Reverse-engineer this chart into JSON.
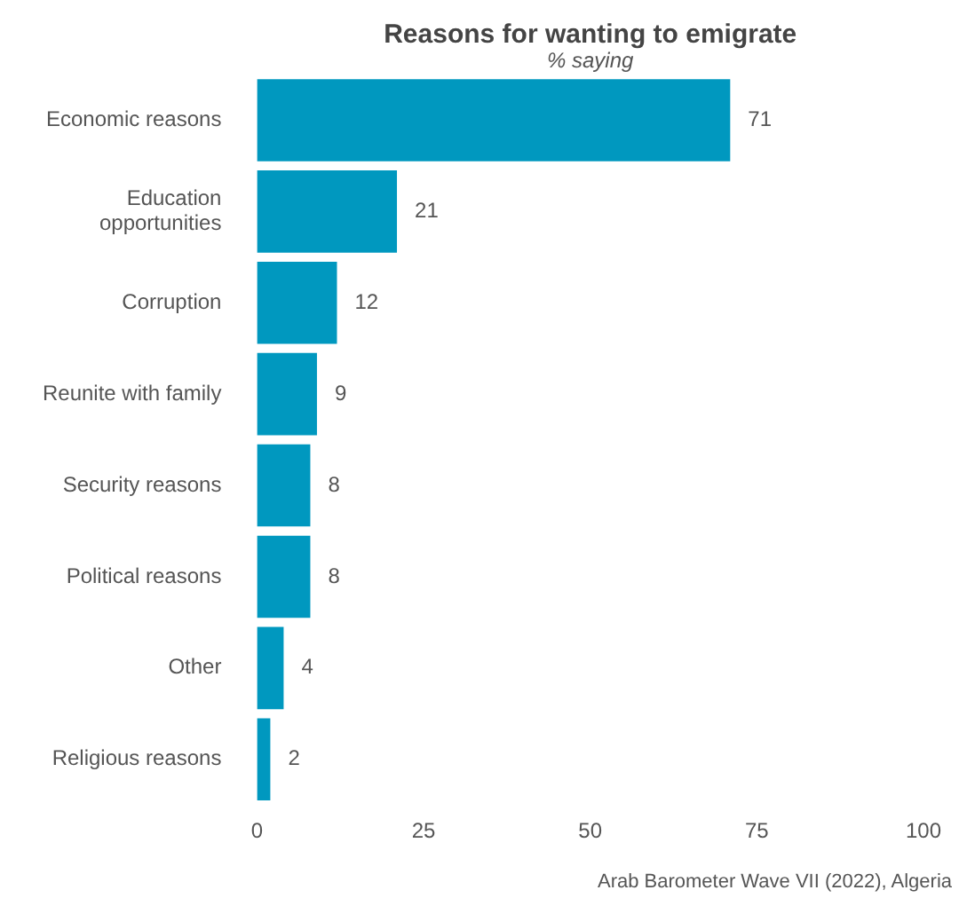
{
  "chart_data": {
    "type": "bar",
    "orientation": "horizontal",
    "title": "Reasons for wanting to emigrate",
    "subtitle": "% saying",
    "categories": [
      "Economic reasons",
      "Education opportunities",
      "Corruption",
      "Reunite with family",
      "Security reasons",
      "Political reasons",
      "Other",
      "Religious reasons"
    ],
    "values": [
      71,
      21,
      12,
      9,
      8,
      8,
      4,
      2
    ],
    "color": "#0098bf",
    "xlim": [
      0,
      100
    ],
    "xticks": [
      0,
      25,
      50,
      75,
      100
    ],
    "grid": false,
    "legend": false,
    "data_labels": true,
    "annotations": [
      "Arab Barometer Wave VII (2022), Algeria"
    ]
  }
}
